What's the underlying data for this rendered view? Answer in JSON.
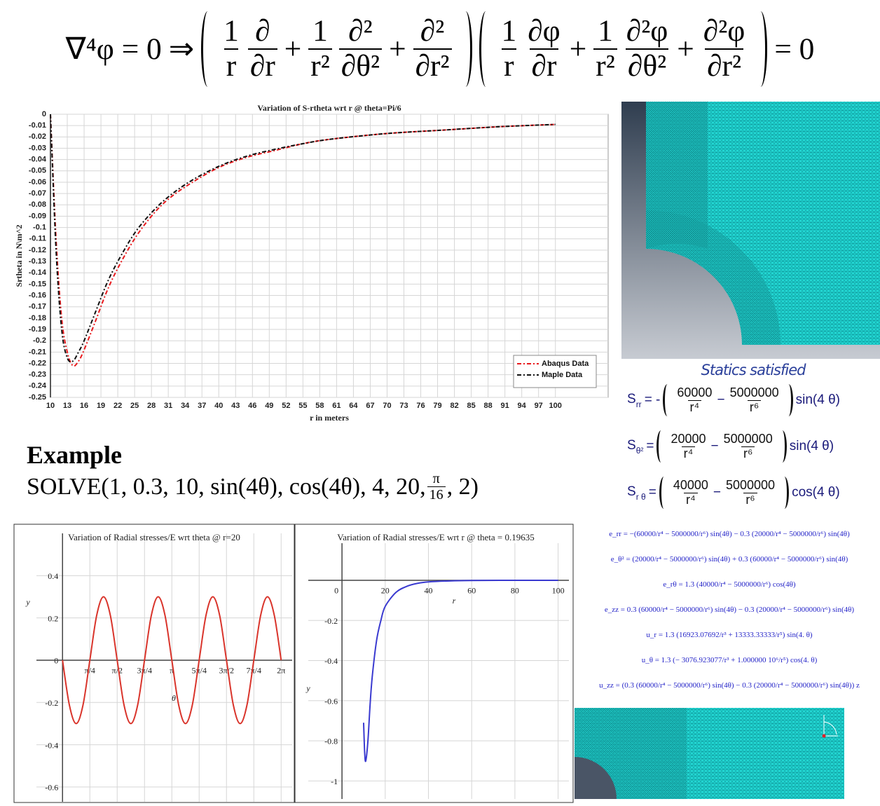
{
  "equation": {
    "lhs": "∇⁴φ = 0",
    "implies": "⇒",
    "plus": "+",
    "rhs": "= 0",
    "operator_terms": [
      [
        {
          "num": "1",
          "den": "r"
        },
        {
          "num": "∂",
          "den": "∂r"
        }
      ],
      [
        {
          "num": "1",
          "den": "r²"
        },
        {
          "num": "∂²",
          "den": "∂θ²"
        }
      ],
      [
        {
          "num": "∂²",
          "den": "∂r²"
        }
      ]
    ],
    "function_terms": [
      [
        {
          "num": "1",
          "den": "r"
        },
        {
          "num": "∂φ",
          "den": "∂r"
        }
      ],
      [
        {
          "num": "1",
          "den": "r²"
        },
        {
          "num": "∂²φ",
          "den": "∂θ²"
        }
      ],
      [
        {
          "num": "∂²φ",
          "den": "∂r²"
        }
      ]
    ]
  },
  "example": {
    "title": "Example",
    "call_start": "SOLVE(1, 0.3, 10, sin(4θ), cos(4θ), 4, 20, ",
    "frac_num": "π",
    "frac_den": "16",
    "call_end": ", 2)"
  },
  "statics": {
    "title": "Statics satisfied",
    "formulas": [
      {
        "symbol": "S",
        "sub": "rr",
        "sign": "= -",
        "num1": "60000",
        "den1": "r⁴",
        "minus": "−",
        "num2": "5000000",
        "den2": "r⁶",
        "trig": "sin(4 θ)"
      },
      {
        "symbol": "S",
        "sub": "θ²",
        "sign": "=",
        "num1": "20000",
        "den1": "r⁴",
        "minus": "−",
        "num2": "5000000",
        "den2": "r⁶",
        "trig": "sin(4 θ)"
      },
      {
        "symbol": "S",
        "sub": "r θ",
        "sign": "=",
        "num1": "40000",
        "den1": "r⁴",
        "minus": "−",
        "num2": "5000000",
        "den2": "r⁶",
        "trig": "cos(4 θ)"
      }
    ]
  },
  "strains": [
    "e_rr = −(60000/r⁴ − 5000000/r⁶) sin(4θ) − 0.3 (20000/r⁴ − 5000000/r⁶) sin(4θ)",
    "e_θ² = (20000/r⁴ − 5000000/r⁶) sin(4θ) + 0.3 (60000/r⁴ − 5000000/r⁶) sin(4θ)",
    "e_rθ = 1.3 (40000/r⁴ − 5000000/r⁶) cos(4θ)",
    "e_zz = 0.3 (60000/r⁴ − 5000000/r⁶) sin(4θ) − 0.3 (20000/r⁴ − 5000000/r⁶) sin(4θ)",
    "u_r = 1.3 (16923.07692/r³ + 13333.33333/r⁵) sin(4. θ)",
    "u_θ = 1.3 (− 3076.923077/r³ + 1.000000 10⁶/r⁵) cos(4. θ)",
    "u_zz = (0.3 (60000/r⁴ − 5000000/r⁶) sin(4θ) − 0.3 (20000/r⁴ − 5000000/r⁶) sin(4θ)) z"
  ],
  "chart_data": [
    {
      "type": "line",
      "title": "Variation of S-rtheta wrt r @ theta=Pi/6",
      "xlabel": "r in meters",
      "ylabel": "Srtheta in N\\m^2",
      "x": [
        10,
        11,
        12,
        13,
        14,
        15,
        16,
        18,
        20,
        22,
        25,
        28,
        31,
        35,
        40,
        45,
        50,
        55,
        60,
        70,
        80,
        90,
        100
      ],
      "series": [
        {
          "name": "Abaqus Data",
          "color": "#e8191c",
          "style": "dashed",
          "values": [
            0,
            -0.11,
            -0.18,
            -0.21,
            -0.222,
            -0.218,
            -0.208,
            -0.183,
            -0.157,
            -0.136,
            -0.11,
            -0.09,
            -0.075,
            -0.061,
            -0.047,
            -0.038,
            -0.032,
            -0.026,
            -0.022,
            -0.017,
            -0.014,
            -0.011,
            -0.009
          ]
        },
        {
          "name": "Maple Data",
          "color": "#111111",
          "style": "dashed",
          "values": [
            0,
            -0.12,
            -0.19,
            -0.215,
            -0.218,
            -0.21,
            -0.2,
            -0.175,
            -0.15,
            -0.13,
            -0.105,
            -0.087,
            -0.073,
            -0.059,
            -0.046,
            -0.037,
            -0.031,
            -0.026,
            -0.022,
            -0.017,
            -0.014,
            -0.011,
            -0.009
          ]
        }
      ],
      "xlim": [
        10,
        109.4
      ],
      "ylim": [
        -0.25,
        0
      ],
      "xticks": [
        10,
        13,
        16,
        19,
        22,
        25,
        28,
        31,
        34,
        37,
        40,
        43,
        46,
        49,
        52,
        55,
        58,
        61,
        64,
        67,
        70,
        73,
        76,
        79,
        82,
        85,
        88,
        91,
        94,
        97,
        100
      ],
      "yticks": [
        0,
        -0.01,
        -0.02,
        -0.03,
        -0.04,
        -0.05,
        -0.06,
        -0.07,
        -0.08,
        -0.09,
        -0.1,
        -0.11,
        -0.12,
        -0.13,
        -0.14,
        -0.15,
        -0.16,
        -0.17,
        -0.18,
        -0.19,
        -0.2,
        -0.21,
        -0.22,
        -0.23,
        -0.24,
        -0.25
      ],
      "grid": true,
      "legend": "lower right"
    },
    {
      "type": "line",
      "title": "Variation of Radial stresses/E wrt theta @ r=20",
      "xlabel": "θ",
      "ylabel": "y",
      "color": "#d9342b",
      "x": [
        0,
        0.19635,
        0.3927,
        0.58905,
        0.7854,
        0.98175,
        1.1781,
        1.37445,
        1.5708,
        1.76715,
        1.9635,
        2.15985,
        2.3562,
        2.55255,
        2.7489,
        2.94525,
        3.1416,
        3.33795,
        3.5343,
        3.73065,
        3.927,
        4.12335,
        4.3197,
        4.51605,
        4.7124,
        4.90875,
        5.1051,
        5.30145,
        5.4978,
        5.69415,
        5.8905,
        6.08685,
        6.2832
      ],
      "values": [
        0,
        -0.212,
        -0.3,
        -0.212,
        0,
        0.212,
        0.3,
        0.212,
        0,
        -0.212,
        -0.3,
        -0.212,
        0,
        0.212,
        0.3,
        0.212,
        0,
        -0.212,
        -0.3,
        -0.212,
        0,
        0.212,
        0.3,
        0.212,
        0,
        -0.212,
        -0.3,
        -0.212,
        0,
        0.212,
        0.3,
        0.212,
        0
      ],
      "xlim": [
        -0.75,
        6.6
      ],
      "ylim": [
        -0.67,
        0.6
      ],
      "xticks": [
        {
          "value": 0.7854,
          "label": "π/4"
        },
        {
          "value": 1.5708,
          "label": "π/2"
        },
        {
          "value": 2.3562,
          "label": "3π/4"
        },
        {
          "value": 3.1416,
          "label": "π"
        },
        {
          "value": 3.927,
          "label": "5π/4"
        },
        {
          "value": 4.7124,
          "label": "3π/2"
        },
        {
          "value": 5.4978,
          "label": "7π/4"
        },
        {
          "value": 6.2832,
          "label": "2π"
        }
      ],
      "yticks": [
        -0.6,
        -0.4,
        -0.2,
        0,
        0.2,
        0.4
      ],
      "grid": true
    },
    {
      "type": "line",
      "title": "Variation of Radial stresses/E wrt r @ theta = 0.19635",
      "xlabel": "r",
      "ylabel": "y",
      "color": "#3a3ad0",
      "x": [
        10,
        10.5,
        11,
        12,
        13,
        14,
        16,
        18,
        20,
        25,
        30,
        35,
        40,
        50,
        60,
        80,
        100
      ],
      "values": [
        -0.71,
        -0.86,
        -0.9,
        -0.8,
        -0.62,
        -0.48,
        -0.3,
        -0.2,
        -0.13,
        -0.06,
        -0.03,
        -0.015,
        -0.008,
        -0.003,
        -0.001,
        0,
        0
      ],
      "xlim": [
        -15.6,
        105
      ],
      "ylim": [
        -1.09,
        0.185
      ],
      "xticks": [
        0,
        20,
        40,
        60,
        80,
        100
      ],
      "yticks": [
        -1,
        -0.8,
        -0.6,
        -0.4,
        -0.2
      ],
      "grid": true
    }
  ]
}
